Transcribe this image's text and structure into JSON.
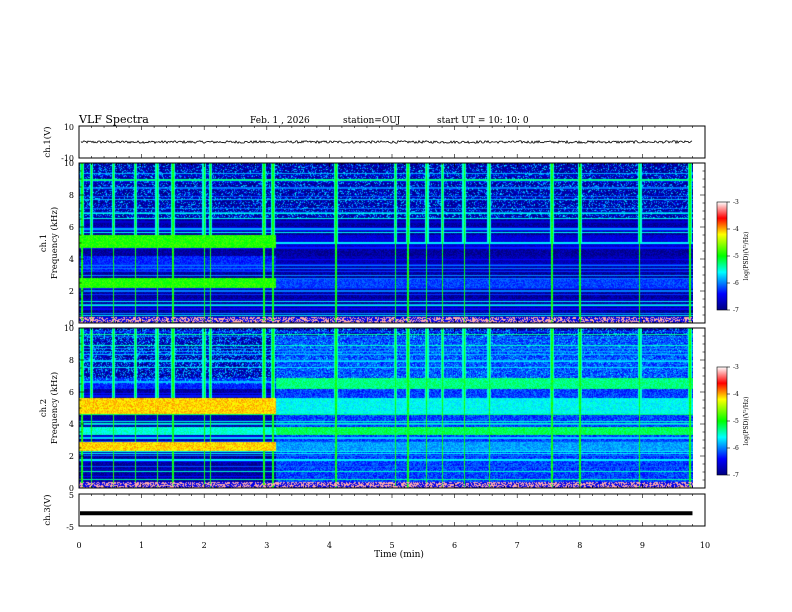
{
  "header": {
    "title": "VLF Spectra",
    "date": "Feb. 1 , 2026",
    "station": "station=OUJ",
    "start": "start UT =  10: 10: 0"
  },
  "chart_data": [
    {
      "type": "line",
      "panel": "ch1-waveform",
      "ylabel": "ch.1(V)",
      "ylim": [
        -10,
        10
      ],
      "ytick_labels": [
        "10",
        "-10"
      ],
      "xlim": [
        0,
        10
      ],
      "series": [
        {
          "name": "ch.1",
          "mean": 0,
          "approx_amplitude": 0.8
        }
      ]
    },
    {
      "type": "heatmap",
      "panel": "ch1-spectrogram",
      "ylabel_line1": "ch.1",
      "ylabel_line2": "Frequency (kHz)",
      "ylim": [
        0,
        10
      ],
      "ytick_labels": [
        "0",
        "2",
        "4",
        "6",
        "8",
        "10"
      ],
      "xlim": [
        0,
        10
      ],
      "data_end_min": 9.8,
      "transition_min": 3.15,
      "colorbar": {
        "label": "log(PSD)(V²/Hz)",
        "range": [
          -7,
          -3
        ],
        "tick_labels": [
          "-3",
          "-4",
          "-5",
          "-6",
          "-7"
        ]
      },
      "bands": [
        {
          "freq_khz": [
            4.7,
            5.5
          ],
          "before_log_psd": -4.9,
          "after_log_psd": -6.6
        },
        {
          "freq_khz": [
            2.2,
            2.8
          ],
          "before_log_psd": -4.9,
          "after_log_psd": -6.2
        },
        {
          "freq_khz": [
            3.2,
            4.2
          ],
          "before_log_psd": -6.3,
          "after_log_psd": -6.8
        }
      ],
      "impulses_min": [
        0.05,
        0.2,
        0.55,
        0.9,
        1.25,
        1.5,
        2.0,
        2.1,
        2.95,
        3.1,
        4.1,
        5.05,
        5.25,
        5.55,
        5.8,
        6.15,
        6.55,
        7.55,
        8.0,
        8.95,
        9.75
      ]
    },
    {
      "type": "heatmap",
      "panel": "ch2-spectrogram",
      "ylabel_line1": "ch.2",
      "ylabel_line2": "Frequency (kHz)",
      "ylim": [
        0,
        10
      ],
      "ytick_labels": [
        "0",
        "2",
        "4",
        "6",
        "8",
        "10"
      ],
      "xlim": [
        0,
        10
      ],
      "data_end_min": 9.8,
      "transition_min": 3.15,
      "colorbar": {
        "label": "log(PSD)(V²/Hz)",
        "range": [
          -7,
          -3
        ],
        "tick_labels": [
          "-3",
          "-4",
          "-5",
          "-6",
          "-7"
        ]
      },
      "bands": [
        {
          "freq_khz": [
            4.6,
            5.6
          ],
          "before_log_psd": -4.1,
          "after_log_psd": -5.6
        },
        {
          "freq_khz": [
            2.3,
            2.9
          ],
          "before_log_psd": -4.1,
          "after_log_psd": -5.9
        },
        {
          "freq_khz": [
            3.3,
            3.8
          ],
          "before_log_psd": -5.5,
          "after_log_psd": -5.2
        },
        {
          "freq_khz": [
            6.2,
            6.9
          ],
          "before_log_psd": -6.3,
          "after_log_psd": -5.3
        }
      ],
      "impulses_min": [
        0.05,
        0.2,
        0.55,
        0.9,
        1.25,
        1.5,
        2.0,
        2.1,
        2.95,
        3.1,
        4.1,
        5.05,
        5.25,
        5.55,
        5.8,
        6.15,
        6.55,
        7.55,
        8.0,
        8.95,
        9.75
      ]
    },
    {
      "type": "line",
      "panel": "ch3-waveform",
      "ylabel": "ch.3(V)",
      "ylim": [
        -5,
        5
      ],
      "ytick_labels": [
        "5",
        "-5"
      ],
      "xlim": [
        0,
        10
      ],
      "series": [
        {
          "name": "ch.3",
          "mean": -1.0,
          "approx_amplitude": 0.1
        }
      ]
    }
  ],
  "xaxis": {
    "label": "Time (min)",
    "range": [
      0,
      10
    ],
    "tick_labels": [
      "0",
      "1",
      "2",
      "3",
      "4",
      "5",
      "6",
      "7",
      "8",
      "9",
      "10"
    ]
  }
}
